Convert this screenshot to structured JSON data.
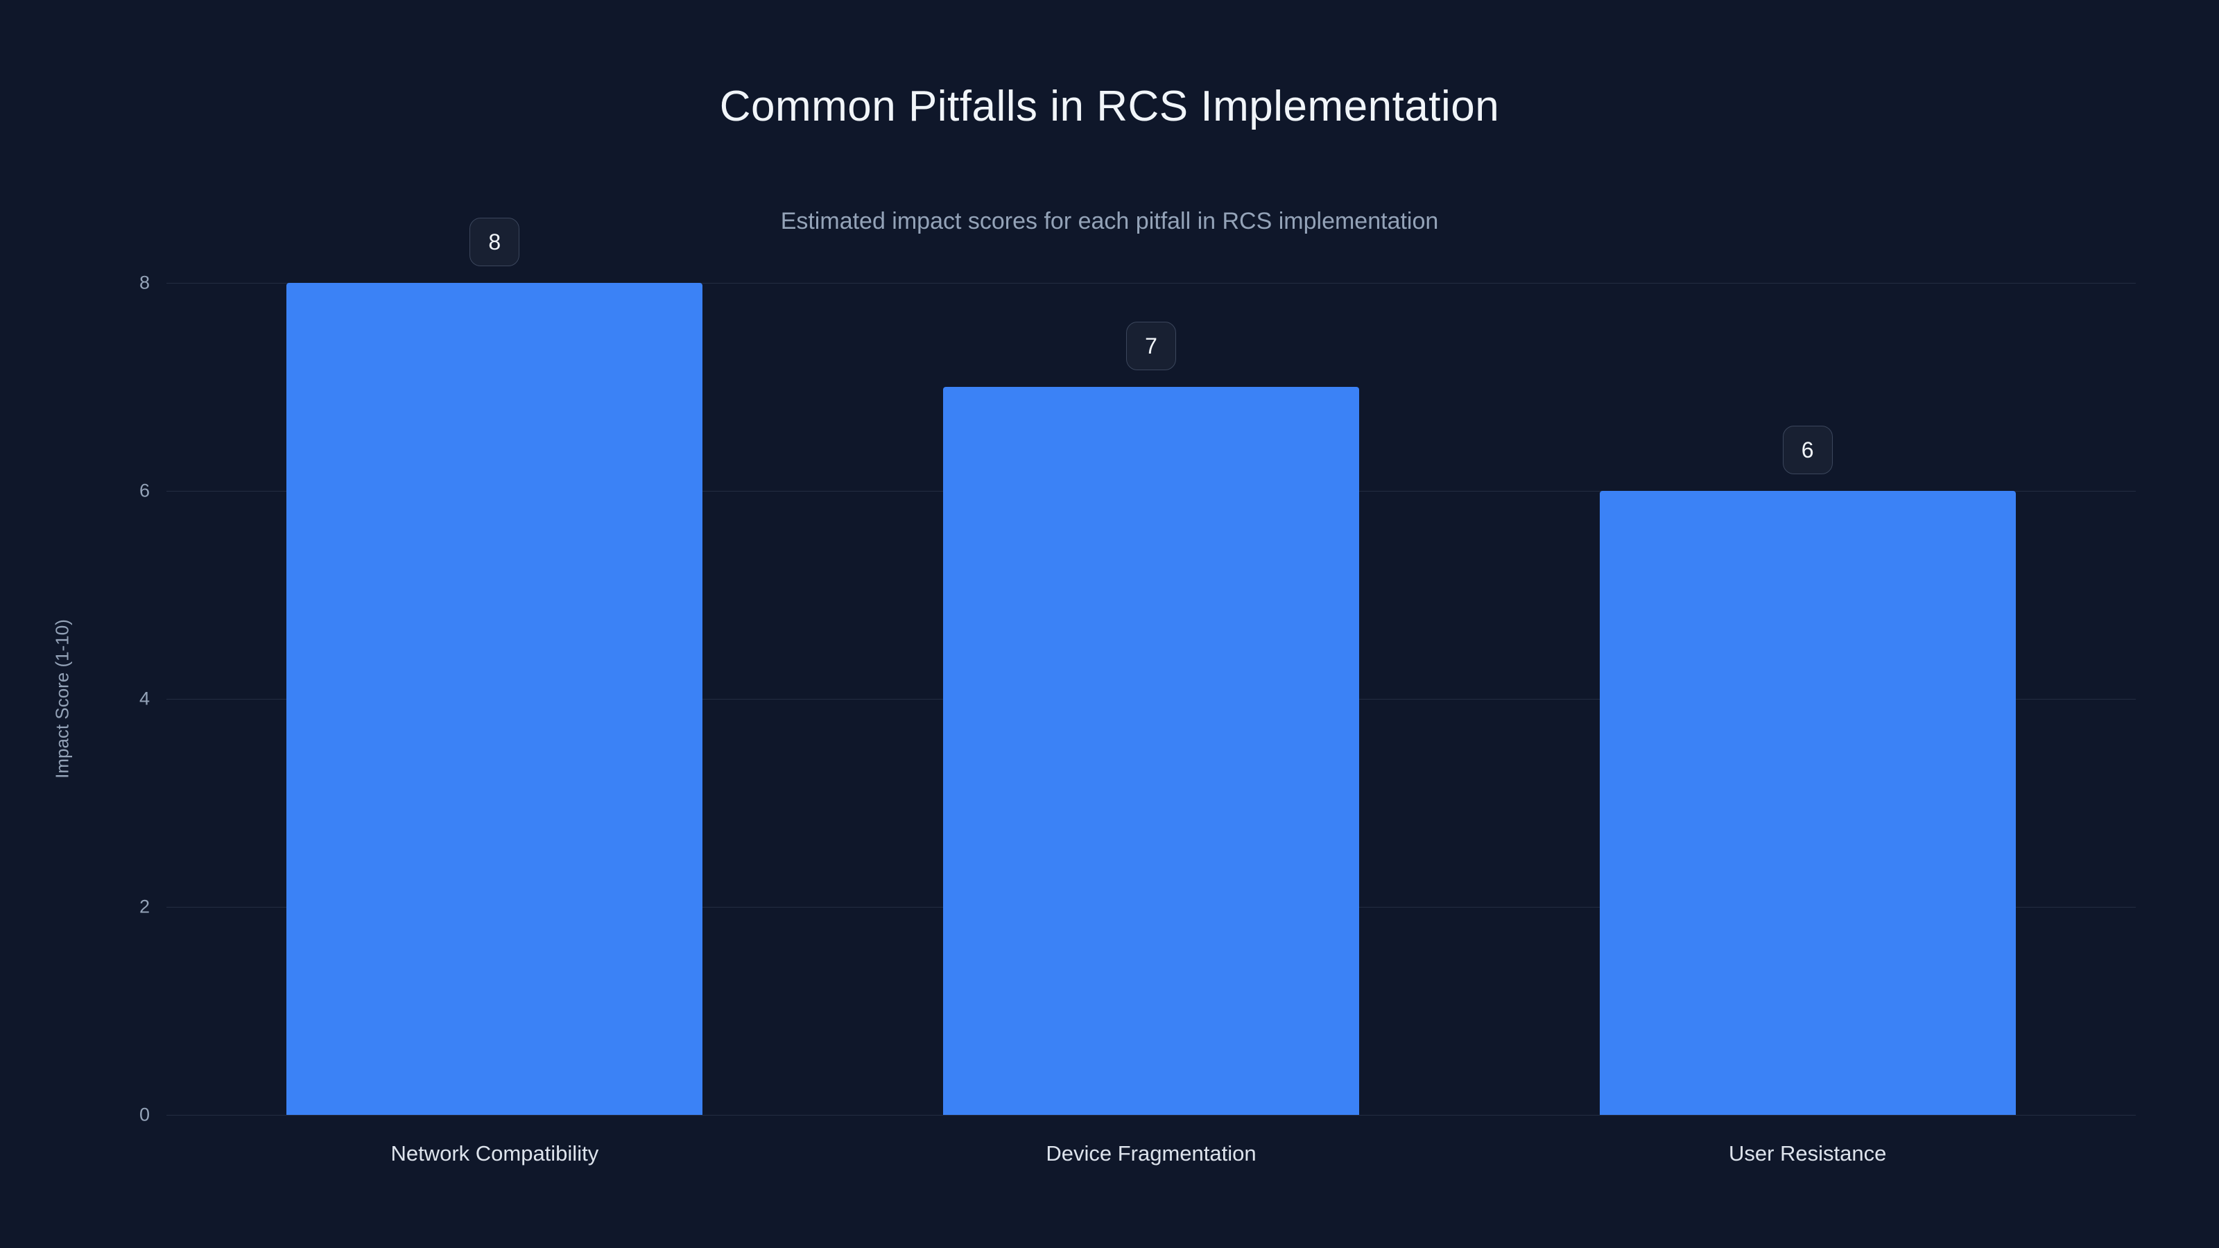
{
  "chart_data": {
    "type": "bar",
    "title": "Common Pitfalls in RCS Implementation",
    "subtitle": "Estimated impact scores for each pitfall in RCS implementation",
    "categories": [
      "Network Compatibility",
      "Device Fragmentation",
      "User Resistance"
    ],
    "values": [
      8,
      7,
      6
    ],
    "value_labels": [
      "8",
      "7",
      "6"
    ],
    "xlabel": "",
    "ylabel": "Impact Score (1-10)",
    "ylim": [
      0,
      8
    ],
    "yticks": [
      0,
      2,
      4,
      6,
      8
    ],
    "grid": true,
    "legend_position": "none",
    "colors": {
      "background": "#0f172a",
      "bar": "#3b82f6",
      "grid": "rgba(148,163,184,0.16)",
      "tick_text": "#94a3b8",
      "title_text": "#f1f5f9",
      "subtitle_text": "#94a3b8",
      "category_text": "#dde3ec",
      "badge_border": "#3b465c"
    }
  }
}
